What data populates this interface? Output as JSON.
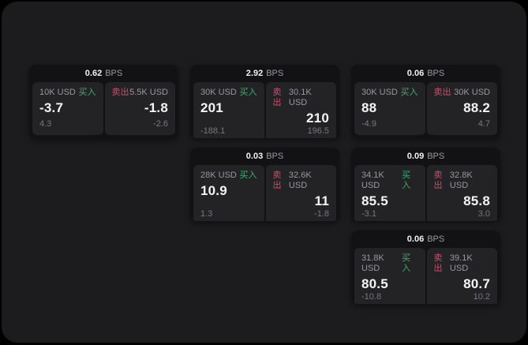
{
  "labels": {
    "buy": "买入",
    "sell": "卖出",
    "bps": "BPS"
  },
  "colors": {
    "page_bg": "#000000",
    "panel_bg": "#1c1c1e",
    "card_bg": "#121214",
    "tile_bg": "#232326",
    "buy_green": "#3dae6e",
    "sell_red": "#c8506a",
    "text_primary": "#f4f4f5",
    "text_secondary": "#98989d",
    "text_muted": "#77777c"
  },
  "cards": [
    {
      "bps": "0.62",
      "buy": {
        "size": "10K USD",
        "price": "-3.7",
        "delta": "4.3"
      },
      "sell": {
        "size": "5.5K USD",
        "price": "-1.8",
        "delta": "-2.6"
      }
    },
    {
      "bps": "2.92",
      "buy": {
        "size": "30K USD",
        "price": "201",
        "delta": "-188.1"
      },
      "sell": {
        "size": "30.1K USD",
        "price": "210",
        "delta": "196.5"
      }
    },
    {
      "bps": "0.06",
      "buy": {
        "size": "30K USD",
        "price": "88",
        "delta": "-4.9"
      },
      "sell": {
        "size": "30K USD",
        "price": "88.2",
        "delta": "4.7"
      }
    },
    {
      "bps": "0.03",
      "buy": {
        "size": "28K USD",
        "price": "10.9",
        "delta": "1.3"
      },
      "sell": {
        "size": "32.6K USD",
        "price": "11",
        "delta": "-1.8"
      }
    },
    {
      "bps": "0.09",
      "buy": {
        "size": "34.1K USD",
        "price": "85.5",
        "delta": "-3.1"
      },
      "sell": {
        "size": "32.8K USD",
        "price": "85.8",
        "delta": "3.0"
      }
    },
    {
      "bps": "0.06",
      "buy": {
        "size": "31.8K USD",
        "price": "80.5",
        "delta": "-10.8"
      },
      "sell": {
        "size": "39.1K USD",
        "price": "80.7",
        "delta": "10.2"
      }
    }
  ]
}
